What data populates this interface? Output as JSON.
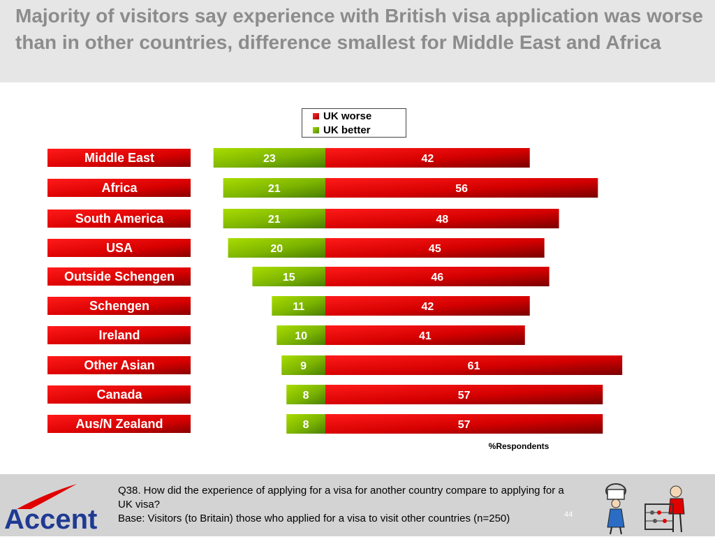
{
  "title": "Majority of visitors say experience with British visa application was worse than in other countries, difference smallest for Middle East and Africa",
  "legend": {
    "items": [
      {
        "label": "UK worse",
        "color": "#e00000"
      },
      {
        "label": "UK better",
        "color": "#7fb800"
      }
    ]
  },
  "chart_data": {
    "type": "bar",
    "orientation": "horizontal-diverging",
    "categories": [
      "Middle East",
      "Africa",
      "South America",
      "USA",
      "Outside Schengen",
      "Schengen",
      "Ireland",
      "Other Asian",
      "Canada",
      "Aus/N Zealand"
    ],
    "series": [
      {
        "name": "UK better",
        "values": [
          23,
          21,
          21,
          20,
          15,
          11,
          10,
          9,
          8,
          8
        ],
        "color": "#7fb800"
      },
      {
        "name": "UK worse",
        "values": [
          42,
          56,
          48,
          45,
          46,
          42,
          41,
          61,
          57,
          57
        ],
        "color": "#e00000"
      }
    ],
    "xlabel": "%Respondents",
    "legend_position": "top-center",
    "grid": false
  },
  "footer": {
    "note_line1": "Q38. How did the experience of applying for a visa for another country compare to applying for a UK visa?",
    "note_line2": "Base: Visitors (to Britain) those who applied for a visa to visit other countries (n=250)",
    "page_number": "44",
    "logo_text": "Accent"
  },
  "colors": {
    "header_band": "#e6e6e6",
    "title_text": "#8c8c8c",
    "label_box": "#e00000",
    "footer_band": "#d3d3d3",
    "logo": "#1f3a93",
    "logo_swoosh": "#e00000"
  }
}
